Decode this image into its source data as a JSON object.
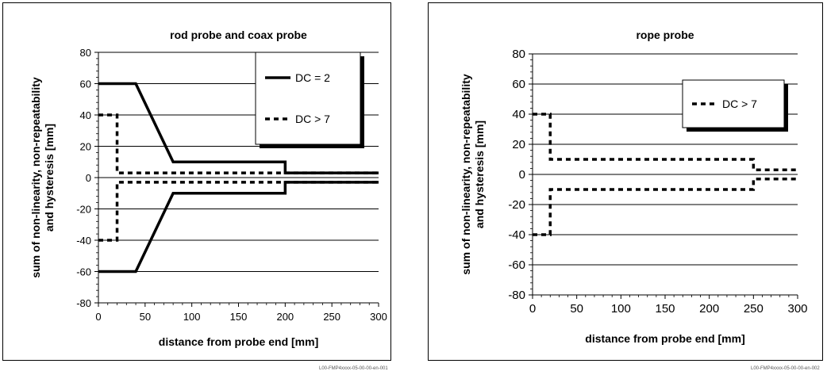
{
  "chart_data": [
    {
      "type": "line",
      "title": "rod probe and coax probe",
      "xlabel": "distance from probe end [mm]",
      "ylabel": [
        "sum of non-linearity, non-repeatability",
        "and hysteresis [mm]"
      ],
      "xlim": [
        0,
        300
      ],
      "ylim": [
        -80,
        80
      ],
      "xticks": [
        0,
        50,
        100,
        150,
        200,
        250,
        300
      ],
      "yticks": [
        -80,
        -60,
        -40,
        -20,
        0,
        20,
        40,
        60,
        80
      ],
      "grid": "horizontal",
      "legend_position": "top-right",
      "series": [
        {
          "name": "DC = 2",
          "style": "solid",
          "x": [
            0,
            40,
            80,
            200,
            200,
            300
          ],
          "y": [
            60,
            60,
            10,
            10,
            3,
            3
          ]
        },
        {
          "name": "DC = 2",
          "style": "solid",
          "legend": false,
          "x": [
            0,
            40,
            80,
            200,
            200,
            300
          ],
          "y": [
            -60,
            -60,
            -10,
            -10,
            -3,
            -3
          ]
        },
        {
          "name": "DC > 7",
          "style": "dashed",
          "x": [
            0,
            20,
            20,
            300
          ],
          "y": [
            40,
            40,
            3,
            3
          ]
        },
        {
          "name": "DC > 7",
          "style": "dashed",
          "legend": false,
          "x": [
            0,
            20,
            20,
            300
          ],
          "y": [
            -40,
            -40,
            -3,
            -3
          ]
        }
      ]
    },
    {
      "type": "line",
      "title": "rope probe",
      "xlabel": "distance from probe end [mm]",
      "ylabel": [
        "sum of non-linearity, non-repeatability",
        "and hysteresis [mm]"
      ],
      "xlim": [
        0,
        300
      ],
      "ylim": [
        -80,
        80
      ],
      "xticks": [
        0,
        50,
        100,
        150,
        200,
        250,
        300
      ],
      "yticks": [
        -80,
        -60,
        -40,
        -20,
        0,
        20,
        40,
        60,
        80
      ],
      "grid": "horizontal",
      "legend_position": "top-right",
      "series": [
        {
          "name": "DC > 7",
          "style": "dashed",
          "x": [
            0,
            20,
            20,
            250,
            250,
            300
          ],
          "y": [
            40,
            40,
            10,
            10,
            3,
            3
          ]
        },
        {
          "name": "DC > 7",
          "style": "dashed",
          "legend": false,
          "x": [
            0,
            20,
            20,
            250,
            250,
            300
          ],
          "y": [
            -40,
            -40,
            -10,
            -10,
            -3,
            -3
          ]
        }
      ]
    }
  ],
  "codes": [
    "L00-FMP4xxxx-05-00-00-en-001",
    "L00-FMP4xxxx-05-00-00-en-002"
  ],
  "colors": {
    "line": "#000000",
    "grid": "#000000",
    "background": "#ffffff"
  }
}
